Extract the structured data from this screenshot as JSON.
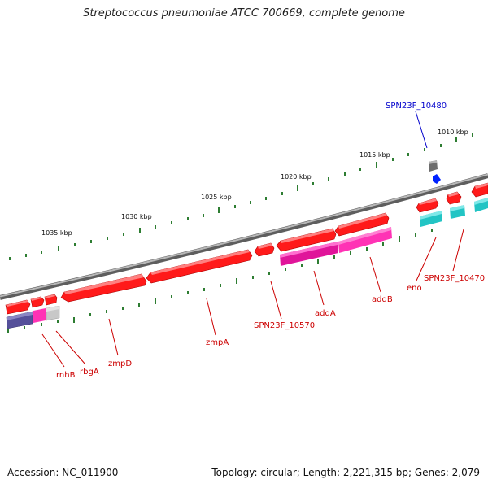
{
  "title": "Streptococcus pneumoniae ATCC 700669, complete genome",
  "footer": {
    "accession_label": "Accession: NC_011900",
    "summary_label": "Topology: circular; Length: 2,221,315 bp; Genes: 2,079"
  },
  "scale_labels": [
    "1010 kbp",
    "1015 kbp",
    "1020 kbp",
    "1025 kbp",
    "1030 kbp",
    "1035 kbp"
  ],
  "gene_labels": {
    "rnhB": "rnhB",
    "rbgA": "rbgA",
    "zmpD": "zmpD",
    "zmpA": "zmpA",
    "SPN23F_10570": "SPN23F_10570",
    "addA": "addA",
    "addB": "addB",
    "eno": "eno",
    "SPN23F_10470": "SPN23F_10470",
    "SPN23F_10480": "SPN23F_10480"
  },
  "colors": {
    "forward_cds": "#ff1a1a",
    "cog_magenta": "#ff33b5",
    "cog_cyan": "#22d0d0",
    "cog_indigo": "#55509a",
    "cog_gray": "#c8c8c8",
    "backbone": "#8a8a8a",
    "tick_green": "#2e7d32",
    "label_red": "#cc0000",
    "label_blue": "#0000cc",
    "rna_feature": "#0022ff"
  }
}
